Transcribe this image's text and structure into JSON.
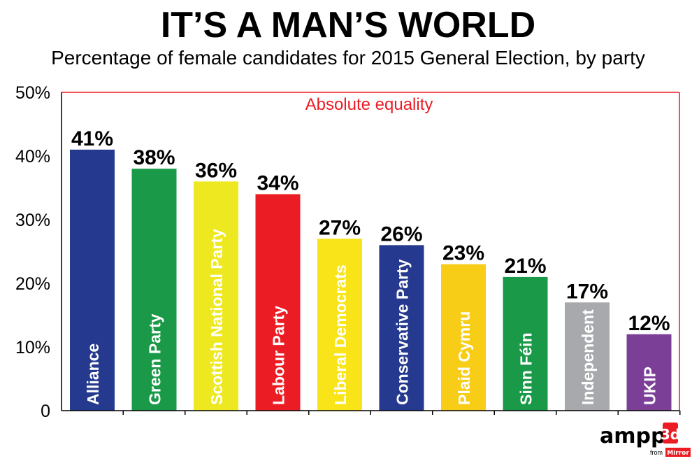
{
  "header": {
    "title": "IT’S A MAN’S WORLD",
    "subtitle": "Percentage of female candidates for 2015 General Election, by party"
  },
  "chart_data": {
    "type": "bar",
    "categories": [
      "Alliance",
      "Green Party",
      "Scottish National Party",
      "Labour Party",
      "Liberal Democrats",
      "Conservative Party",
      "Plaid Cymru",
      "Sinn Féin",
      "Independent",
      "UKIP"
    ],
    "values": [
      41,
      38,
      36,
      34,
      27,
      26,
      23,
      21,
      17,
      12
    ],
    "value_labels": [
      "41%",
      "38%",
      "36%",
      "34%",
      "27%",
      "26%",
      "23%",
      "21%",
      "17%",
      "12%"
    ],
    "colors": [
      "#253a8e",
      "#1a9a48",
      "#ede81f",
      "#ec1c24",
      "#f8e418",
      "#253a8e",
      "#f7cd17",
      "#1a9a48",
      "#a7a9ac",
      "#7b3f98"
    ],
    "label_colors": [
      "#ffffff",
      "#ffffff",
      "#ffffff",
      "#ffffff",
      "#ffffff",
      "#ffffff",
      "#ffffff",
      "#ffffff",
      "#ffffff",
      "#ffffff"
    ],
    "yticks": [
      0,
      10,
      20,
      30,
      40,
      50
    ],
    "ytick_labels": [
      "0",
      "10%",
      "20%",
      "30%",
      "40%",
      "50%"
    ],
    "ylim": [
      0,
      50
    ],
    "reference_line": {
      "value": 50,
      "label": "Absolute equality",
      "color": "#ec1c24"
    },
    "grid": false
  },
  "branding": {
    "logo_text": "ampp",
    "logo_mark": "3d",
    "from_text": "from",
    "mirror_text": "Mirror",
    "brand_color": "#ec1c24"
  }
}
